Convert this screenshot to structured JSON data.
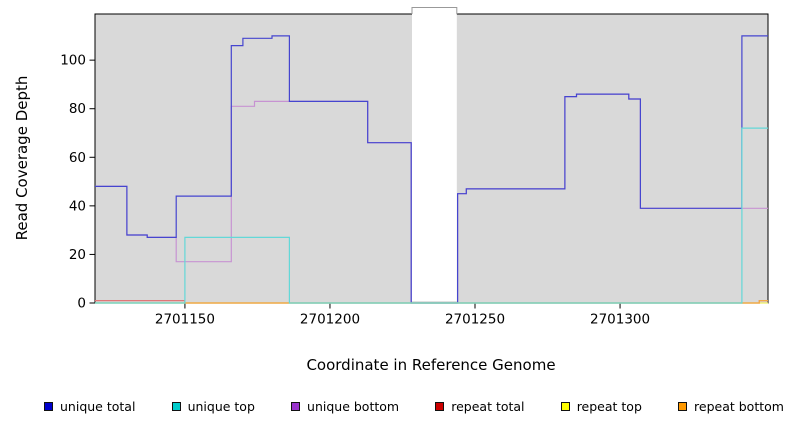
{
  "chart_data": {
    "type": "line",
    "step": true,
    "title": "",
    "xlabel": "Coordinate in Reference Genome",
    "ylabel": "Read Coverage Depth",
    "xlim": [
      2701119,
      2701351
    ],
    "ylim": [
      0,
      119
    ],
    "x_ticks": [
      2701150,
      2701200,
      2701250,
      2701300
    ],
    "y_ticks": [
      0,
      20,
      40,
      60,
      80,
      100
    ],
    "plot_bg": "#d9d9d9",
    "grid": false,
    "legend_position": "bottom",
    "gap_region": {
      "x_start": 2701228,
      "x_end": 2701244,
      "fill": "#ffffff"
    },
    "draw_order": [
      "unique bottom",
      "unique total",
      "repeat total",
      "repeat top",
      "repeat bottom",
      "unique top"
    ],
    "series": [
      {
        "name": "unique total",
        "color": "#0000cc",
        "line_color": "#4545cf",
        "points": [
          [
            2701119,
            48
          ],
          [
            2701130,
            28
          ],
          [
            2701137,
            27
          ],
          [
            2701147,
            44
          ],
          [
            2701166,
            106
          ],
          [
            2701170,
            109
          ],
          [
            2701180,
            110
          ],
          [
            2701186,
            83
          ],
          [
            2701213,
            66
          ],
          [
            2701228,
            0
          ],
          [
            2701244,
            45
          ],
          [
            2701247,
            47
          ],
          [
            2701281,
            85
          ],
          [
            2701285,
            86
          ],
          [
            2701303,
            84
          ],
          [
            2701307,
            39
          ],
          [
            2701342,
            110
          ]
        ]
      },
      {
        "name": "unique top",
        "color": "#00cccc",
        "line_color": "#63d8d8",
        "points": [
          [
            2701119,
            0
          ],
          [
            2701150,
            27
          ],
          [
            2701186,
            0
          ],
          [
            2701342,
            72
          ]
        ]
      },
      {
        "name": "unique bottom",
        "color": "#9933cc",
        "line_color": "#c793d2",
        "points": [
          [
            2701119,
            48
          ],
          [
            2701130,
            28
          ],
          [
            2701137,
            27
          ],
          [
            2701147,
            17
          ],
          [
            2701166,
            81
          ],
          [
            2701174,
            83
          ],
          [
            2701213,
            66
          ],
          [
            2701228,
            0
          ],
          [
            2701244,
            45
          ],
          [
            2701247,
            47
          ],
          [
            2701281,
            85
          ],
          [
            2701285,
            86
          ],
          [
            2701303,
            84
          ],
          [
            2701307,
            39
          ]
        ]
      },
      {
        "name": "repeat total",
        "color": "#cc0000",
        "line_color": "#e07777",
        "points": [
          [
            2701119,
            1
          ],
          [
            2701150,
            0
          ],
          [
            2701348,
            1
          ]
        ]
      },
      {
        "name": "repeat top",
        "color": "#ffff00",
        "line_color": "#f0f060",
        "points": [
          [
            2701119,
            0
          ]
        ]
      },
      {
        "name": "repeat bottom",
        "color": "#ff9900",
        "line_color": "#f0a846",
        "points": [
          [
            2701119,
            0
          ],
          [
            2701348,
            1
          ]
        ]
      }
    ]
  },
  "legend": {
    "items": [
      {
        "label": "unique total",
        "color": "#0000cc"
      },
      {
        "label": "unique top",
        "color": "#00cccc"
      },
      {
        "label": "unique bottom",
        "color": "#9933cc"
      },
      {
        "label": "repeat total",
        "color": "#cc0000"
      },
      {
        "label": "repeat top",
        "color": "#ffff00"
      },
      {
        "label": "repeat bottom",
        "color": "#ff9900"
      }
    ]
  }
}
